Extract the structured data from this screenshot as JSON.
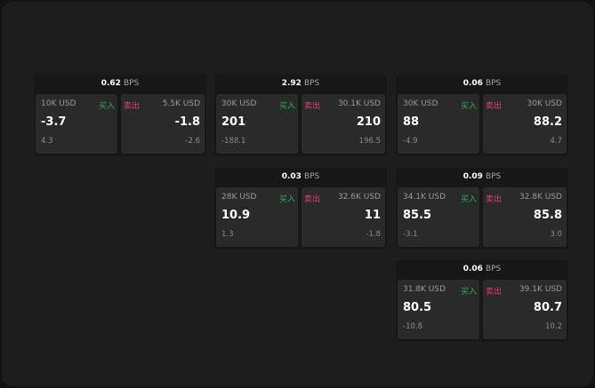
{
  "unit": "BPS",
  "buy_label": "买入",
  "sell_label": "卖出",
  "colors": {
    "buy": "#2faa5a",
    "sell": "#d8436d",
    "background": "#1d1d1d"
  },
  "tiles": [
    {
      "spread": "0.62",
      "buy": {
        "qty": "10K USD",
        "price": "-3.7",
        "change": "4.3"
      },
      "sell": {
        "qty": "5.5K USD",
        "price": "-1.8",
        "change": "-2.6"
      }
    },
    {
      "spread": "2.92",
      "buy": {
        "qty": "30K USD",
        "price": "201",
        "change": "-188.1"
      },
      "sell": {
        "qty": "30.1K USD",
        "price": "210",
        "change": "196.5"
      }
    },
    {
      "spread": "0.06",
      "buy": {
        "qty": "30K USD",
        "price": "88",
        "change": "-4.9"
      },
      "sell": {
        "qty": "30K USD",
        "price": "88.2",
        "change": "4.7"
      }
    },
    {
      "spread": "0.03",
      "buy": {
        "qty": "28K USD",
        "price": "10.9",
        "change": "1.3"
      },
      "sell": {
        "qty": "32.6K USD",
        "price": "11",
        "change": "-1.8"
      }
    },
    {
      "spread": "0.09",
      "buy": {
        "qty": "34.1K USD",
        "price": "85.5",
        "change": "-3.1"
      },
      "sell": {
        "qty": "32.8K USD",
        "price": "85.8",
        "change": "3.0"
      }
    },
    {
      "spread": "0.06",
      "buy": {
        "qty": "31.8K USD",
        "price": "80.5",
        "change": "-10.8"
      },
      "sell": {
        "qty": "39.1K USD",
        "price": "80.7",
        "change": "10.2"
      }
    }
  ]
}
